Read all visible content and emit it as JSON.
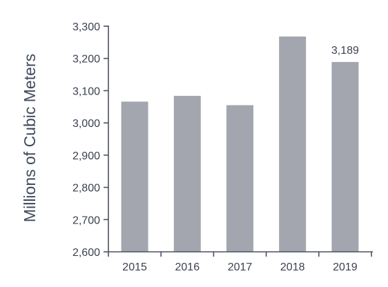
{
  "chart_data": {
    "type": "bar",
    "title": "",
    "xlabel": "",
    "ylabel": "Millions of Cubic Meters",
    "categories": [
      "2015",
      "2016",
      "2017",
      "2018",
      "2019"
    ],
    "values": [
      3066,
      3084,
      3055,
      3268,
      3189
    ],
    "ylim": [
      2600,
      3300
    ],
    "yticks": [
      2600,
      2700,
      2800,
      2900,
      3000,
      3100,
      3200,
      3300
    ],
    "ytick_labels": [
      "2,600",
      "2,700",
      "2,800",
      "2,900",
      "3,000",
      "3,100",
      "3,200",
      "3,300"
    ],
    "data_labels": [
      {
        "category": "2019",
        "text": "3,189"
      }
    ],
    "grid": false,
    "legend": "none",
    "colors": {
      "bar": "#a3a6ae",
      "axis": "#4a5160",
      "text": "#3a4150"
    }
  }
}
